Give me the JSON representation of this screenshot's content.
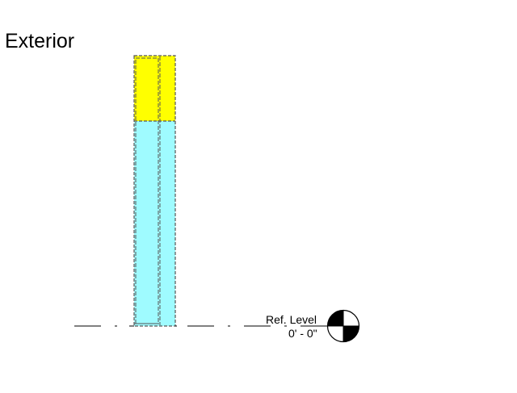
{
  "view": {
    "title": "Exterior"
  },
  "reference_level": {
    "name": "Ref. Level",
    "elevation": "0' - 0\""
  },
  "colors": {
    "upper_band": "#ffff00",
    "lower_band": "#9ffbff",
    "outline": "#444444",
    "line": "#000000"
  },
  "icons": {
    "level_marker": "level-datum-symbol"
  }
}
